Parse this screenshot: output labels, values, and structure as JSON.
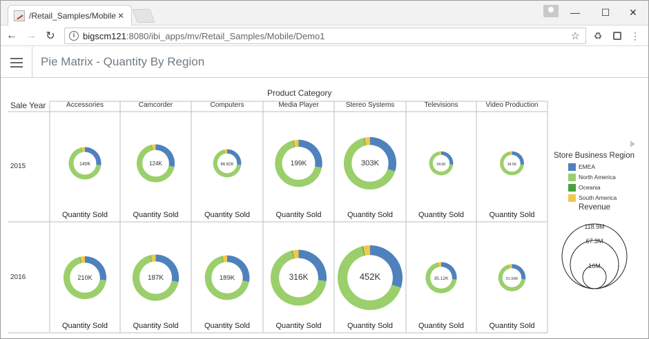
{
  "browser": {
    "tab_title": "/Retail_Samples/Mobile/",
    "tab_close": "✕",
    "url_host": "bigscm121",
    "url_path": ":8080/ibi_apps/mv/Retail_Samples/Mobile/Demo1",
    "controls": {
      "minimize": "—",
      "maximize": "☐",
      "close": "✕"
    },
    "icons": {
      "back": "arrow-left-icon",
      "forward": "arrow-right-icon",
      "reload": "reload-icon",
      "info": "info-icon",
      "bookmark": "star-icon",
      "ext1": "recycle-icon",
      "ext2": "extension-icon",
      "menu": "kebab-menu-icon"
    }
  },
  "app": {
    "title": "Pie Matrix - Quantity By Region"
  },
  "chart": {
    "column_axis_title": "Product Category",
    "row_axis_title": "Sale Year",
    "cell_label": "Quantity Sold",
    "legend_title": "Store Business Region",
    "size_legend_title": "Revenue",
    "size_legend_values": [
      "118.9M",
      "67.3M",
      "16M"
    ]
  },
  "colors": {
    "EMEA": "#4f81bd",
    "North America": "#9bcf6b",
    "Oceania": "#4aa03f",
    "South America": "#f2c84b",
    "grid": "#bdbdbd"
  },
  "chart_data": {
    "type": "pie",
    "variant": "donut-matrix",
    "columns": [
      "Accessories",
      "Camcorder",
      "Computers",
      "Media Player",
      "Stereo Systems",
      "Televisions",
      "Video Production"
    ],
    "rows": [
      "2015",
      "2016"
    ],
    "series": [
      "EMEA",
      "North America",
      "Oceania",
      "South America"
    ],
    "cells": [
      [
        {
          "total_label": "140K",
          "revenue": 40,
          "shares": [
            0.27,
            0.69,
            0.005,
            0.035
          ]
        },
        {
          "total_label": "124K",
          "revenue": 55,
          "shares": [
            0.28,
            0.68,
            0.005,
            0.035
          ]
        },
        {
          "total_label": "66.62K",
          "revenue": 30,
          "shares": [
            0.27,
            0.69,
            0.005,
            0.035
          ]
        },
        {
          "total_label": "199K",
          "revenue": 85,
          "shares": [
            0.28,
            0.68,
            0.005,
            0.035
          ]
        },
        {
          "total_label": "303K",
          "revenue": 105,
          "shares": [
            0.3,
            0.66,
            0.005,
            0.035
          ]
        },
        {
          "total_label": "34.6K",
          "revenue": 22,
          "shares": [
            0.27,
            0.69,
            0.005,
            0.035
          ]
        },
        {
          "total_label": "34.5K",
          "revenue": 22,
          "shares": [
            0.27,
            0.69,
            0.005,
            0.035
          ]
        }
      ],
      [
        {
          "total_label": "210K",
          "revenue": 70,
          "shares": [
            0.27,
            0.69,
            0.005,
            0.035
          ]
        },
        {
          "total_label": "187K",
          "revenue": 82,
          "shares": [
            0.28,
            0.68,
            0.005,
            0.035
          ]
        },
        {
          "total_label": "189K",
          "revenue": 76,
          "shares": [
            0.28,
            0.68,
            0.005,
            0.035
          ]
        },
        {
          "total_label": "316K",
          "revenue": 118.9,
          "shares": [
            0.27,
            0.69,
            0.005,
            0.035
          ]
        },
        {
          "total_label": "452K",
          "revenue": 160,
          "shares": [
            0.3,
            0.66,
            0.005,
            0.035
          ]
        },
        {
          "total_label": "35.12K",
          "revenue": 37,
          "shares": [
            0.27,
            0.69,
            0.005,
            0.035
          ]
        },
        {
          "total_label": "31.56K",
          "revenue": 28,
          "shares": [
            0.27,
            0.69,
            0.005,
            0.035
          ]
        }
      ]
    ]
  }
}
